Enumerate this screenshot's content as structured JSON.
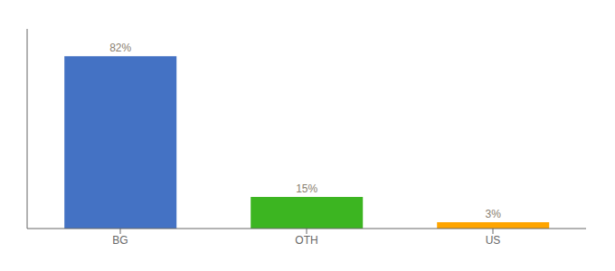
{
  "chart_data": {
    "type": "bar",
    "categories": [
      "BG",
      "OTH",
      "US"
    ],
    "values": [
      82,
      15,
      3
    ],
    "value_labels": [
      "82%",
      "15%",
      "3%"
    ],
    "colors": [
      "#4472C4",
      "#3CB521",
      "#FFA500"
    ],
    "ylim": [
      0,
      95
    ],
    "data_labels": true,
    "tick_labels": "x"
  }
}
